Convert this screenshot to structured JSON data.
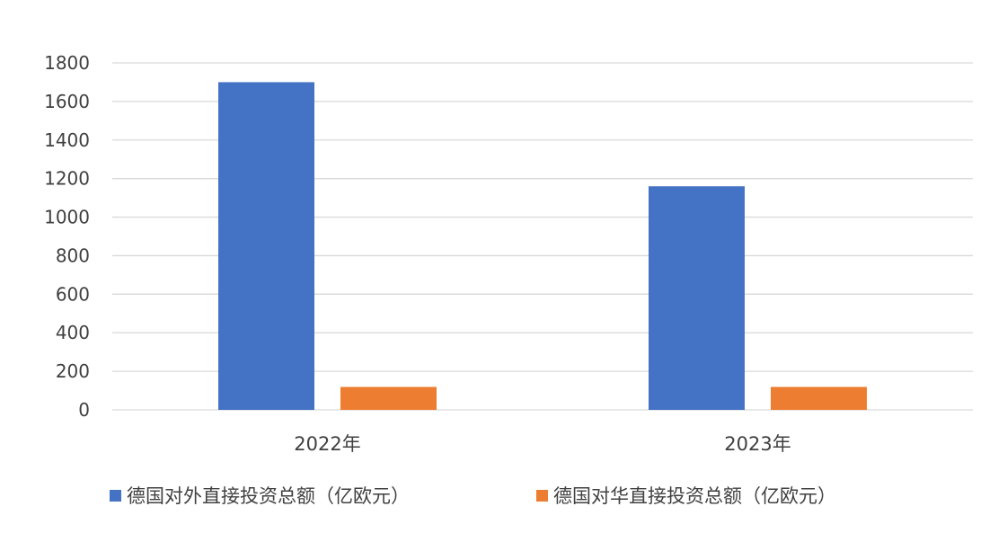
{
  "chart_data": {
    "type": "bar",
    "categories": [
      "2022年",
      "2023年"
    ],
    "series": [
      {
        "name": "德国对外直接投资总额（亿欧元）",
        "values": [
          1700,
          1160
        ],
        "color": "#4472C4"
      },
      {
        "name": "德国对华直接投资总额（亿欧元）",
        "values": [
          119,
          119
        ],
        "color": "#ED7D31"
      }
    ],
    "ylim": [
      0,
      1800
    ],
    "yticks": [
      0,
      200,
      400,
      600,
      800,
      1000,
      1200,
      1400,
      1600,
      1800
    ],
    "grid": true,
    "gridColor": "#D9D9D9",
    "legend": "bottom"
  }
}
